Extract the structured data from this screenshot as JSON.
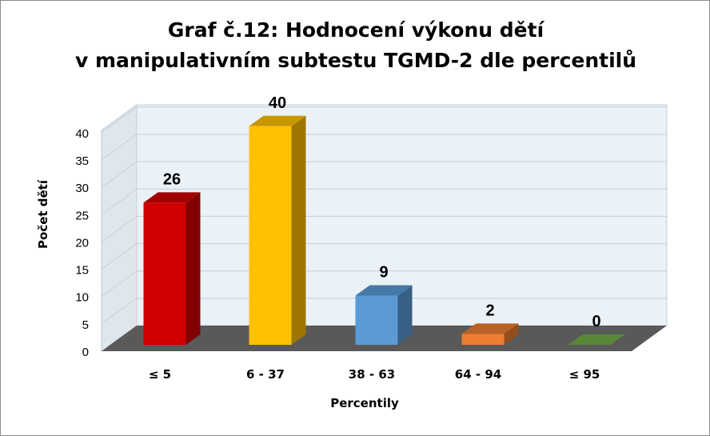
{
  "chart_data": {
    "type": "bar",
    "title": [
      "Graf č.12: Hodnocení výkonu dětí",
      "v manipulativním subtestu TGMD-2 dle percentilů"
    ],
    "xlabel": "Percentily",
    "ylabel": "Počet dětí",
    "categories": [
      "≤ 5",
      "6 - 37",
      "38 - 63",
      "64 - 94",
      "≤ 95"
    ],
    "values": [
      26,
      40,
      9,
      2,
      0
    ],
    "data_labels": [
      "26",
      "40",
      "9",
      "2",
      "0"
    ],
    "ylim": [
      0,
      40
    ],
    "yticks": [
      "0",
      "5",
      "10",
      "15",
      "20",
      "25",
      "30",
      "35",
      "40"
    ],
    "grid": true,
    "legend": "none",
    "style": "3d-column",
    "colors": {
      "bars": [
        "#d00000",
        "#ffc000",
        "#5b9bd5",
        "#ed7d31",
        "#70ad47"
      ],
      "wall": "#eaf1f7",
      "floor": "#595959",
      "gridline": "#d0d8e0"
    }
  }
}
